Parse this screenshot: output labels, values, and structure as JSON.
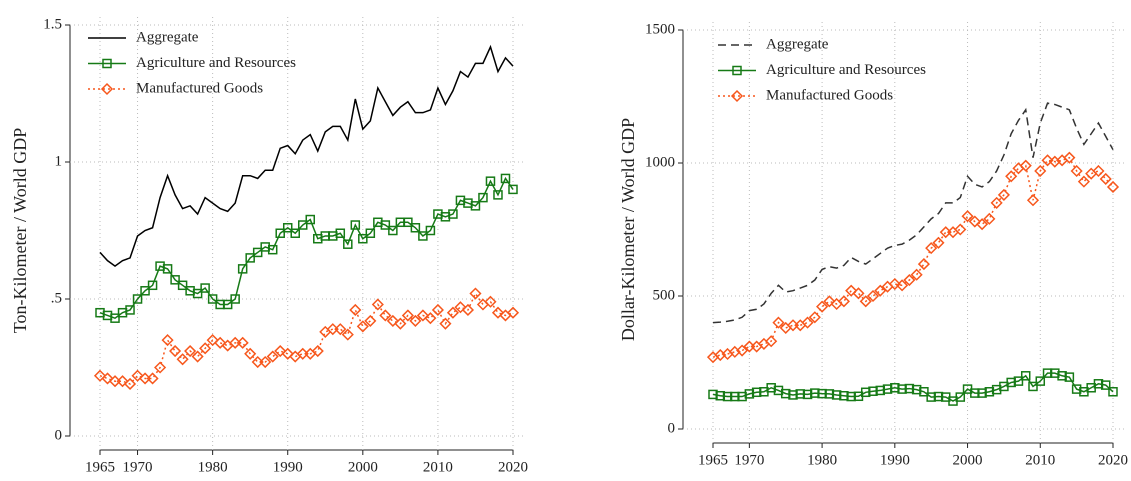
{
  "chart_data": [
    {
      "type": "line",
      "ylabel": "Ton-Kilometer / World GDP",
      "x": [
        1965,
        1966,
        1967,
        1968,
        1969,
        1970,
        1971,
        1972,
        1973,
        1974,
        1975,
        1976,
        1977,
        1978,
        1979,
        1980,
        1981,
        1982,
        1983,
        1984,
        1985,
        1986,
        1987,
        1988,
        1989,
        1990,
        1991,
        1992,
        1993,
        1994,
        1995,
        1996,
        1997,
        1998,
        1999,
        2000,
        2001,
        2002,
        2003,
        2004,
        2005,
        2006,
        2007,
        2008,
        2009,
        2010,
        2011,
        2012,
        2013,
        2014,
        2015,
        2016,
        2017,
        2018,
        2019,
        2020
      ],
      "xlim": [
        1965,
        2020
      ],
      "xticks": [
        1965,
        1970,
        1980,
        1990,
        2000,
        2010,
        2020
      ],
      "ylim": [
        0,
        1.5
      ],
      "yticks": [
        0,
        {
          "value": 0.5,
          "label": ".5"
        },
        1,
        1.5
      ],
      "grid": true,
      "legend": "upper left",
      "series": [
        {
          "name": "Aggregate",
          "color": "#000000",
          "line_style": "solid",
          "marker": "none",
          "values": [
            0.67,
            0.64,
            0.62,
            0.64,
            0.65,
            0.73,
            0.75,
            0.76,
            0.87,
            0.95,
            0.88,
            0.83,
            0.84,
            0.81,
            0.87,
            0.85,
            0.83,
            0.82,
            0.85,
            0.95,
            0.95,
            0.94,
            0.97,
            0.97,
            1.05,
            1.06,
            1.03,
            1.08,
            1.1,
            1.04,
            1.11,
            1.13,
            1.13,
            1.08,
            1.23,
            1.12,
            1.15,
            1.27,
            1.22,
            1.17,
            1.2,
            1.22,
            1.18,
            1.18,
            1.19,
            1.27,
            1.21,
            1.26,
            1.33,
            1.31,
            1.36,
            1.36,
            1.42,
            1.33,
            1.38,
            1.35
          ]
        },
        {
          "name": "Agriculture and Resources",
          "color": "#167a16",
          "line_style": "solid",
          "marker": "square",
          "values": [
            0.45,
            0.44,
            0.43,
            0.45,
            0.46,
            0.5,
            0.53,
            0.55,
            0.62,
            0.61,
            0.57,
            0.55,
            0.53,
            0.52,
            0.54,
            0.5,
            0.48,
            0.48,
            0.5,
            0.61,
            0.65,
            0.67,
            0.69,
            0.68,
            0.74,
            0.76,
            0.74,
            0.77,
            0.79,
            0.72,
            0.73,
            0.73,
            0.74,
            0.7,
            0.77,
            0.72,
            0.74,
            0.78,
            0.77,
            0.75,
            0.78,
            0.78,
            0.76,
            0.73,
            0.75,
            0.81,
            0.8,
            0.81,
            0.86,
            0.85,
            0.84,
            0.87,
            0.93,
            0.88,
            0.94,
            0.9
          ]
        },
        {
          "name": "Manufactured Goods",
          "color": "#f7571c",
          "line_style": "dotted",
          "marker": "diamond",
          "values": [
            0.22,
            0.21,
            0.2,
            0.2,
            0.19,
            0.22,
            0.21,
            0.21,
            0.25,
            0.35,
            0.31,
            0.28,
            0.31,
            0.29,
            0.32,
            0.35,
            0.34,
            0.33,
            0.34,
            0.34,
            0.3,
            0.27,
            0.27,
            0.29,
            0.31,
            0.3,
            0.29,
            0.3,
            0.3,
            0.31,
            0.38,
            0.39,
            0.39,
            0.37,
            0.46,
            0.4,
            0.42,
            0.48,
            0.44,
            0.42,
            0.41,
            0.44,
            0.42,
            0.44,
            0.43,
            0.46,
            0.41,
            0.45,
            0.47,
            0.46,
            0.52,
            0.48,
            0.49,
            0.45,
            0.44,
            0.45
          ]
        }
      ]
    },
    {
      "type": "line",
      "ylabel": "Dollar-Kilometer / World GDP",
      "x": [
        1965,
        1966,
        1967,
        1968,
        1969,
        1970,
        1971,
        1972,
        1973,
        1974,
        1975,
        1976,
        1977,
        1978,
        1979,
        1980,
        1981,
        1982,
        1983,
        1984,
        1985,
        1986,
        1987,
        1988,
        1989,
        1990,
        1991,
        1992,
        1993,
        1994,
        1995,
        1996,
        1997,
        1998,
        1999,
        2000,
        2001,
        2002,
        2003,
        2004,
        2005,
        2006,
        2007,
        2008,
        2009,
        2010,
        2011,
        2012,
        2013,
        2014,
        2015,
        2016,
        2017,
        2018,
        2019,
        2020
      ],
      "xlim": [
        1965,
        2020
      ],
      "xticks": [
        1965,
        1970,
        1980,
        1990,
        2000,
        2010,
        2020
      ],
      "ylim": [
        0,
        1500
      ],
      "yticks": [
        0,
        500,
        1000,
        1500
      ],
      "grid": true,
      "legend": "upper left",
      "series": [
        {
          "name": "Aggregate",
          "color": "#333333",
          "line_style": "dashed",
          "marker": "none",
          "values": [
            400,
            402,
            405,
            410,
            420,
            445,
            450,
            470,
            510,
            540,
            515,
            520,
            530,
            540,
            560,
            600,
            610,
            605,
            615,
            645,
            630,
            620,
            640,
            660,
            680,
            690,
            695,
            710,
            730,
            760,
            790,
            810,
            850,
            850,
            870,
            950,
            920,
            910,
            930,
            970,
            1030,
            1110,
            1160,
            1200,
            1020,
            1150,
            1225,
            1220,
            1210,
            1200,
            1130,
            1070,
            1110,
            1150,
            1100,
            1050
          ]
        },
        {
          "name": "Agriculture and Resources",
          "color": "#167a16",
          "line_style": "solid",
          "marker": "square",
          "values": [
            130,
            125,
            122,
            122,
            122,
            132,
            138,
            140,
            155,
            145,
            133,
            128,
            132,
            130,
            135,
            133,
            132,
            128,
            125,
            122,
            123,
            138,
            142,
            145,
            150,
            155,
            150,
            152,
            148,
            140,
            120,
            122,
            120,
            105,
            120,
            150,
            135,
            135,
            140,
            148,
            160,
            175,
            180,
            200,
            160,
            180,
            210,
            210,
            200,
            195,
            150,
            140,
            155,
            170,
            165,
            140
          ]
        },
        {
          "name": "Manufactured Goods",
          "color": "#f7571c",
          "line_style": "dotted",
          "marker": "diamond",
          "values": [
            270,
            278,
            282,
            290,
            295,
            310,
            310,
            320,
            330,
            400,
            380,
            390,
            390,
            400,
            420,
            460,
            480,
            470,
            480,
            520,
            510,
            480,
            500,
            520,
            535,
            545,
            540,
            560,
            580,
            620,
            680,
            700,
            740,
            740,
            750,
            800,
            780,
            770,
            790,
            850,
            880,
            950,
            980,
            990,
            860,
            970,
            1010,
            1005,
            1010,
            1020,
            970,
            930,
            960,
            970,
            940,
            910
          ]
        }
      ]
    }
  ]
}
